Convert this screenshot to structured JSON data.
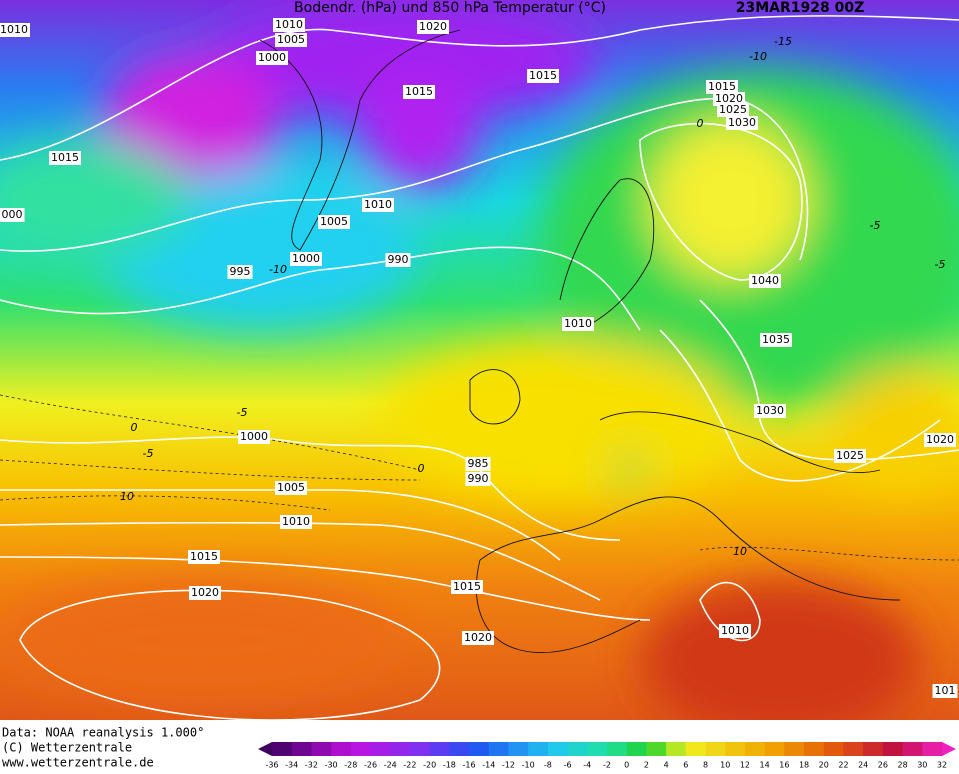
{
  "header": {
    "title": "Bodendr. (hPa) und 850 hPa Temperatur (°C)",
    "date": "23MAR1928 00Z"
  },
  "isobar_labels": [
    "1010",
    "1010",
    "1020",
    "1005",
    "1000",
    "1015",
    "1015",
    "1015",
    "000",
    "1005",
    "1010",
    "1000",
    "995",
    "990",
    "1015",
    "1020",
    "1025",
    "1030",
    "1040",
    "1010",
    "1035",
    "1030",
    "1025",
    "1020",
    "1000",
    "985",
    "990",
    "1005",
    "1010",
    "1015",
    "1015",
    "1020",
    "1020",
    "1010",
    "101"
  ],
  "temperature_labels": [
    "-15",
    "-10",
    "-10",
    "0",
    "-5",
    "-5",
    "-5",
    "0",
    "-5",
    "10",
    "0",
    "10"
  ],
  "footer": {
    "source": "Data: NOAA reanalysis 1.000°",
    "copyright": "(C) Wetterzentrale",
    "url": "www.wetterzentrale.de"
  },
  "colorbar": {
    "labels": [
      -36,
      -34,
      -32,
      -30,
      -28,
      -26,
      -24,
      -22,
      -20,
      -18,
      -16,
      -14,
      -12,
      -10,
      -8,
      -6,
      -4,
      -2,
      0,
      2,
      4,
      6,
      8,
      10,
      12,
      14,
      16,
      18,
      20,
      22,
      24,
      26,
      28,
      30,
      32
    ]
  }
}
